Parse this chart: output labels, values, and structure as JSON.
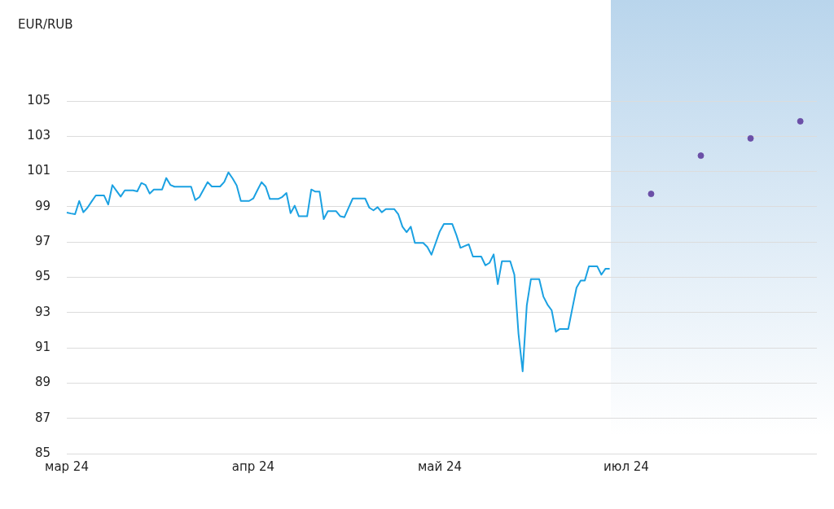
{
  "chart_data": {
    "type": "line",
    "ylabel": "EUR/RUB",
    "categories": [
      "мар 24",
      null,
      null,
      null,
      null,
      null,
      null,
      null,
      null,
      null,
      null,
      null,
      null,
      null,
      null,
      null,
      null,
      null,
      null,
      null,
      null,
      null,
      null,
      null,
      null,
      null,
      null,
      null,
      null,
      null,
      null,
      null,
      null,
      null,
      null,
      null,
      null,
      null,
      null,
      null,
      null,
      null,
      null,
      null,
      null,
      "апр 24",
      null,
      null,
      null,
      null,
      null,
      null,
      null,
      null,
      null,
      null,
      null,
      null,
      null,
      null,
      null,
      null,
      null,
      null,
      null,
      null,
      null,
      null,
      null,
      null,
      null,
      null,
      null,
      null,
      null,
      null,
      null,
      null,
      null,
      null,
      null,
      null,
      null,
      null,
      null,
      null,
      null,
      null,
      null,
      null,
      "май 24",
      null,
      null,
      null,
      null,
      null,
      null,
      null,
      null,
      null,
      null,
      null,
      null,
      null,
      null,
      null,
      null,
      null,
      null,
      null,
      null,
      null,
      null,
      null,
      null,
      null,
      null,
      null,
      null,
      null,
      null,
      null,
      null,
      null,
      null,
      null,
      null,
      null,
      null,
      null,
      null,
      null,
      null,
      null,
      null,
      "июл 24",
      null,
      null,
      null,
      null,
      null,
      null,
      null,
      null,
      null,
      null,
      null,
      null,
      null,
      null,
      null,
      null,
      null,
      null,
      null,
      null,
      null,
      null,
      null,
      null,
      null,
      null,
      null,
      null,
      null,
      null,
      null,
      null,
      null,
      null,
      null,
      null,
      null,
      null,
      null,
      null,
      null,
      null,
      null,
      null,
      null,
      null
    ],
    "ylim": [
      85,
      105
    ],
    "yticks": [
      85,
      87,
      89,
      91,
      93,
      95,
      97,
      99,
      101,
      103,
      105
    ],
    "grid": "y",
    "legend": false,
    "marker": "none",
    "line_style": "solid",
    "series": [
      {
        "color": "#1ba1e2",
        "values": [
          98.67,
          98.62,
          98.58,
          99.33,
          98.69,
          98.95,
          99.3,
          99.64,
          99.64,
          99.64,
          99.13,
          100.23,
          99.9,
          99.58,
          99.93,
          99.93,
          99.93,
          99.87,
          100.35,
          100.24,
          99.75,
          99.98,
          99.98,
          99.98,
          100.63,
          100.24,
          100.14,
          100.14,
          100.14,
          100.14,
          100.14,
          99.38,
          99.55,
          99.98,
          100.4,
          100.15,
          100.15,
          100.15,
          100.41,
          100.95,
          100.61,
          100.21,
          99.33,
          99.33,
          99.33,
          99.47,
          99.94,
          100.4,
          100.14,
          99.44,
          99.44,
          99.44,
          99.56,
          99.78,
          98.64,
          99.06,
          98.46,
          98.46,
          98.46,
          99.98,
          99.86,
          99.86,
          98.3,
          98.75,
          98.75,
          98.75,
          98.46,
          98.41,
          98.94,
          99.47,
          99.47,
          99.47,
          99.47,
          98.95,
          98.8,
          98.98,
          98.69,
          98.87,
          98.87,
          98.87,
          98.57,
          97.87,
          97.56,
          97.87,
          96.95,
          96.95,
          96.95,
          96.72,
          96.28,
          96.94,
          97.6,
          98.03,
          98.03,
          98.03,
          97.41,
          96.67,
          96.77,
          96.87,
          96.18,
          96.18,
          96.18,
          95.68,
          95.82,
          96.3,
          94.61,
          95.91,
          95.91,
          95.91,
          95.15,
          91.79,
          89.67,
          93.41,
          94.9,
          94.9,
          94.9,
          93.91,
          93.45,
          93.13,
          91.91,
          92.07,
          92.07,
          92.07,
          93.25,
          94.41,
          94.82,
          94.82,
          95.62,
          95.62,
          95.62,
          95.15,
          95.49,
          95.49,
          null,
          null,
          null,
          null,
          null,
          null,
          null,
          null,
          null,
          null,
          null,
          null,
          null,
          null,
          null,
          null,
          null,
          null,
          null,
          null,
          null,
          null,
          null,
          null,
          null,
          null,
          null,
          null,
          null,
          null,
          null,
          null,
          null,
          null,
          null,
          null,
          null,
          null,
          null,
          null,
          null,
          null,
          null,
          null,
          null,
          null,
          null,
          null,
          null,
          null
        ]
      },
      {
        "type": "scatter",
        "color": "#6b4fa7",
        "marker": "circle",
        "values": [
          null,
          null,
          null,
          null,
          null,
          null,
          null,
          null,
          null,
          null,
          null,
          null,
          null,
          null,
          null,
          null,
          null,
          null,
          null,
          null,
          null,
          null,
          null,
          null,
          null,
          null,
          null,
          null,
          null,
          null,
          null,
          null,
          null,
          null,
          null,
          null,
          null,
          null,
          null,
          null,
          null,
          null,
          null,
          null,
          null,
          null,
          null,
          null,
          null,
          null,
          null,
          null,
          null,
          null,
          null,
          null,
          null,
          null,
          null,
          null,
          null,
          null,
          null,
          null,
          null,
          null,
          null,
          null,
          null,
          null,
          null,
          null,
          null,
          null,
          null,
          null,
          null,
          null,
          null,
          null,
          null,
          null,
          null,
          null,
          null,
          null,
          null,
          null,
          null,
          null,
          null,
          null,
          null,
          null,
          null,
          null,
          null,
          null,
          null,
          null,
          null,
          null,
          null,
          null,
          null,
          null,
          null,
          null,
          null,
          null,
          null,
          null,
          null,
          null,
          null,
          null,
          null,
          null,
          null,
          null,
          null,
          null,
          null,
          null,
          null,
          null,
          null,
          null,
          null,
          null,
          null,
          null,
          null,
          null,
          null,
          null,
          null,
          null,
          null,
          null,
          null,
          99.73,
          null,
          null,
          null,
          null,
          null,
          null,
          null,
          null,
          null,
          null,
          null,
          101.9,
          null,
          null,
          null,
          null,
          null,
          null,
          null,
          null,
          null,
          null,
          null,
          102.88,
          null,
          null,
          null,
          null,
          null,
          null,
          null,
          null,
          null,
          null,
          null,
          103.85,
          null,
          null,
          null,
          null
        ]
      }
    ]
  }
}
